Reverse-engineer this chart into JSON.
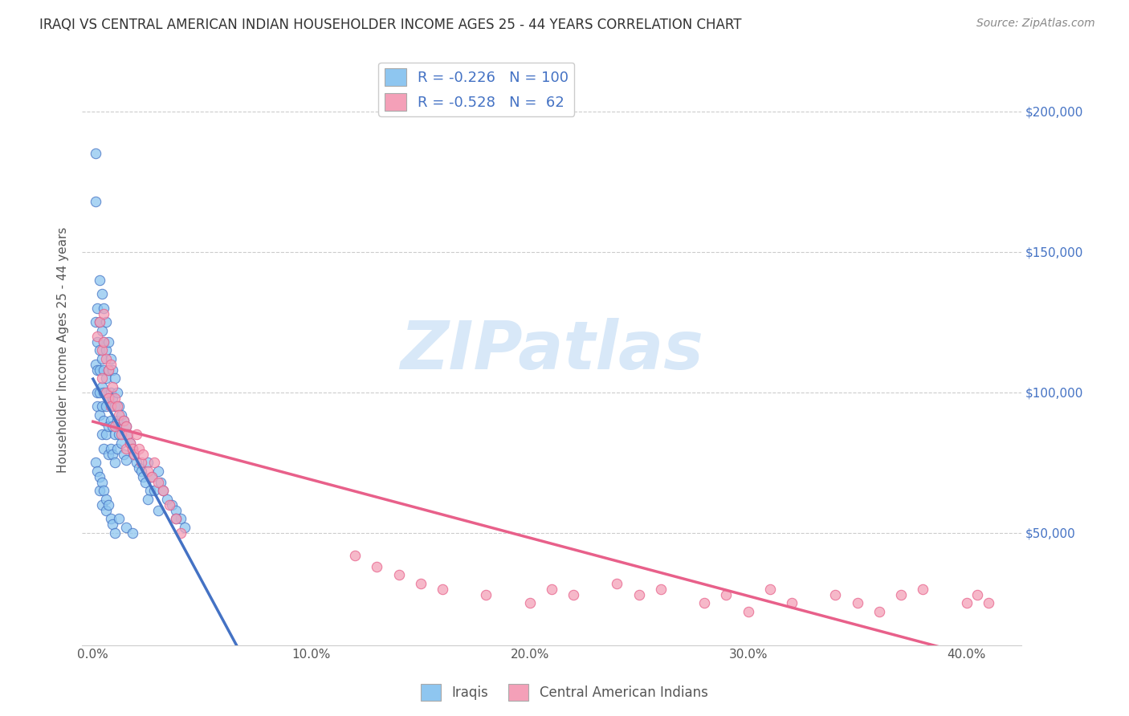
{
  "title": "IRAQI VS CENTRAL AMERICAN INDIAN HOUSEHOLDER INCOME AGES 25 - 44 YEARS CORRELATION CHART",
  "source": "Source: ZipAtlas.com",
  "ylabel": "Householder Income Ages 25 - 44 years",
  "ytick_labels": [
    "$50,000",
    "$100,000",
    "$150,000",
    "$200,000"
  ],
  "ytick_values": [
    50000,
    100000,
    150000,
    200000
  ],
  "xlim": [
    -0.005,
    0.425
  ],
  "ylim": [
    10000,
    220000
  ],
  "legend_iraqis": "Iraqis",
  "legend_ca_indians": "Central American Indians",
  "R_iraqis": -0.226,
  "N_iraqis": 100,
  "R_ca": -0.528,
  "N_ca": 62,
  "color_iraqis": "#8EC6F0",
  "color_ca": "#F4A0B8",
  "trendline_iraqis_color": "#4472C4",
  "trendline_ca_color": "#E8608A",
  "watermark_color": "#D8E8F8",
  "title_fontsize": 12,
  "source_fontsize": 10,
  "iraqis_x": [
    0.001,
    0.001,
    0.001,
    0.001,
    0.002,
    0.002,
    0.002,
    0.002,
    0.002,
    0.003,
    0.003,
    0.003,
    0.003,
    0.003,
    0.003,
    0.004,
    0.004,
    0.004,
    0.004,
    0.004,
    0.004,
    0.005,
    0.005,
    0.005,
    0.005,
    0.005,
    0.005,
    0.006,
    0.006,
    0.006,
    0.006,
    0.006,
    0.007,
    0.007,
    0.007,
    0.007,
    0.007,
    0.008,
    0.008,
    0.008,
    0.008,
    0.009,
    0.009,
    0.009,
    0.009,
    0.01,
    0.01,
    0.01,
    0.01,
    0.011,
    0.011,
    0.011,
    0.012,
    0.012,
    0.013,
    0.013,
    0.014,
    0.014,
    0.015,
    0.015,
    0.016,
    0.017,
    0.018,
    0.019,
    0.02,
    0.021,
    0.022,
    0.023,
    0.024,
    0.025,
    0.026,
    0.027,
    0.028,
    0.03,
    0.031,
    0.032,
    0.034,
    0.036,
    0.038,
    0.04,
    0.001,
    0.002,
    0.003,
    0.003,
    0.004,
    0.004,
    0.005,
    0.006,
    0.006,
    0.007,
    0.008,
    0.009,
    0.01,
    0.012,
    0.015,
    0.018,
    0.025,
    0.03,
    0.038,
    0.042
  ],
  "iraqis_y": [
    185000,
    168000,
    125000,
    110000,
    130000,
    118000,
    108000,
    100000,
    95000,
    140000,
    125000,
    115000,
    108000,
    100000,
    92000,
    135000,
    122000,
    112000,
    102000,
    95000,
    85000,
    130000,
    118000,
    108000,
    100000,
    90000,
    80000,
    125000,
    115000,
    105000,
    95000,
    85000,
    118000,
    108000,
    98000,
    88000,
    78000,
    112000,
    100000,
    90000,
    80000,
    108000,
    98000,
    88000,
    78000,
    105000,
    95000,
    85000,
    75000,
    100000,
    90000,
    80000,
    95000,
    85000,
    92000,
    82000,
    90000,
    78000,
    88000,
    76000,
    85000,
    82000,
    80000,
    78000,
    75000,
    73000,
    72000,
    70000,
    68000,
    75000,
    65000,
    70000,
    65000,
    72000,
    68000,
    65000,
    62000,
    60000,
    58000,
    55000,
    75000,
    72000,
    70000,
    65000,
    68000,
    60000,
    65000,
    62000,
    58000,
    60000,
    55000,
    53000,
    50000,
    55000,
    52000,
    50000,
    62000,
    58000,
    55000,
    52000
  ],
  "ca_x": [
    0.002,
    0.003,
    0.004,
    0.004,
    0.005,
    0.005,
    0.006,
    0.006,
    0.007,
    0.007,
    0.008,
    0.008,
    0.009,
    0.01,
    0.01,
    0.011,
    0.012,
    0.013,
    0.014,
    0.015,
    0.015,
    0.016,
    0.017,
    0.018,
    0.019,
    0.02,
    0.021,
    0.022,
    0.023,
    0.025,
    0.027,
    0.028,
    0.03,
    0.032,
    0.035,
    0.038,
    0.04,
    0.12,
    0.13,
    0.14,
    0.15,
    0.16,
    0.18,
    0.2,
    0.21,
    0.22,
    0.24,
    0.25,
    0.26,
    0.28,
    0.29,
    0.3,
    0.31,
    0.32,
    0.34,
    0.35,
    0.36,
    0.37,
    0.38,
    0.4,
    0.405,
    0.41
  ],
  "ca_y": [
    120000,
    125000,
    115000,
    105000,
    128000,
    118000,
    112000,
    100000,
    108000,
    98000,
    110000,
    95000,
    102000,
    98000,
    88000,
    95000,
    92000,
    85000,
    90000,
    88000,
    80000,
    85000,
    82000,
    80000,
    78000,
    85000,
    80000,
    75000,
    78000,
    72000,
    70000,
    75000,
    68000,
    65000,
    60000,
    55000,
    50000,
    42000,
    38000,
    35000,
    32000,
    30000,
    28000,
    25000,
    30000,
    28000,
    32000,
    28000,
    30000,
    25000,
    28000,
    22000,
    30000,
    25000,
    28000,
    25000,
    22000,
    28000,
    30000,
    25000,
    28000,
    25000
  ]
}
